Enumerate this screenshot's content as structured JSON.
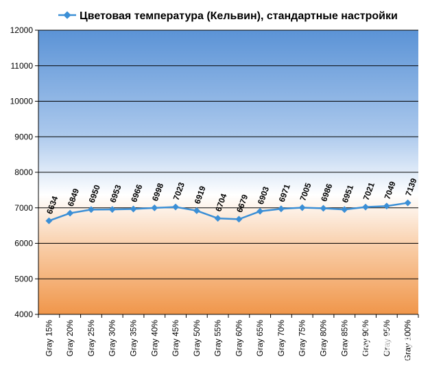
{
  "chart_data": {
    "type": "line",
    "title": "Цветовая температура (Кельвин), стандартные настройки",
    "categories": [
      "Gray 15%",
      "Gray 20%",
      "Gray 25%",
      "Gray 30%",
      "Gray 35%",
      "Gray 40%",
      "Gray 45%",
      "Gray 50%",
      "Gray 55%",
      "Gray 60%",
      "Gray 65%",
      "Gray 70%",
      "Gray 75%",
      "Gray 80%",
      "Gray 85%",
      "Gray 90%",
      "Gray 95%",
      "Gray 100%"
    ],
    "series": [
      {
        "name": "Цветовая температура (Кельвин), стандартные настройки",
        "values": [
          6634,
          6849,
          6950,
          6953,
          6966,
          6998,
          7023,
          6919,
          6704,
          6679,
          6903,
          6971,
          7005,
          6986,
          6951,
          7021,
          7049,
          7139
        ],
        "color": "#3b8fd6"
      }
    ],
    "y_ticks": [
      "12000",
      "11000",
      "10000",
      "9000",
      "8000",
      "7000",
      "6000",
      "5000",
      "4000"
    ],
    "ylim": [
      4000,
      12000
    ],
    "grid": true,
    "legend": "top",
    "colors": {
      "plot_top": "#5b93d6",
      "plot_mid": "#ffffff",
      "plot_bottom": "#f0964a",
      "line": "#3b8fd6",
      "marker": "#3b8fd6"
    }
  },
  "watermark": {
    "logo": "3D NEWS",
    "tagline": "Daily Digital Digest"
  }
}
